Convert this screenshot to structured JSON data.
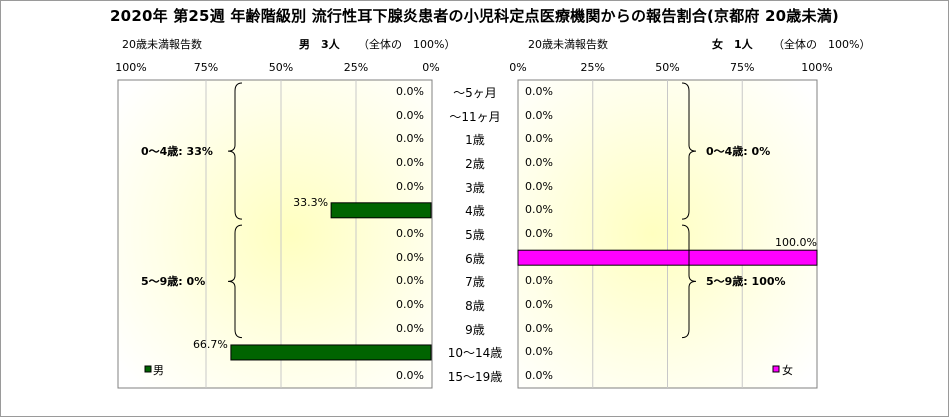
{
  "title": "2020年 第25週 年齢階級別 流行性耳下腺炎患者の小児科定点医療機関からの報告割合(京都府 20歳未満)",
  "left": {
    "subtitle_left": "20歳未満報告数",
    "subtitle_main": "男　3人",
    "subtitle_total": "（全体の　100%）",
    "ticks": [
      "100%",
      "75%",
      "50%",
      "25%",
      "0%"
    ],
    "legend": "男",
    "color": "#006400",
    "groups": [
      {
        "label": "0～4歳: 33%",
        "from": 0,
        "to": 5
      },
      {
        "label": "5～9歳: 0%",
        "from": 6,
        "to": 10
      }
    ]
  },
  "right": {
    "subtitle_left": "20歳未満報告数",
    "subtitle_main": "女　1人",
    "subtitle_total": "（全体の　100%）",
    "ticks": [
      "0%",
      "25%",
      "50%",
      "75%",
      "100%"
    ],
    "legend": "女",
    "color": "#ff00ff",
    "groups": [
      {
        "label": "0～4歳: 0%",
        "from": 0,
        "to": 5
      },
      {
        "label": "5～9歳: 100%",
        "from": 6,
        "to": 10
      }
    ]
  },
  "chart_data": {
    "type": "bar",
    "orientation": "horizontal",
    "categories": [
      "～5ヶ月",
      "～11ヶ月",
      "1歳",
      "2歳",
      "3歳",
      "4歳",
      "5歳",
      "6歳",
      "7歳",
      "8歳",
      "9歳",
      "10～14歳",
      "15～19歳"
    ],
    "series": [
      {
        "name": "男",
        "values": [
          0.0,
          0.0,
          0.0,
          0.0,
          0.0,
          33.3,
          0.0,
          0.0,
          0.0,
          0.0,
          0.0,
          66.7,
          0.0
        ]
      },
      {
        "name": "女",
        "values": [
          0.0,
          0.0,
          0.0,
          0.0,
          0.0,
          0.0,
          0.0,
          100.0,
          0.0,
          0.0,
          0.0,
          0.0,
          0.0
        ]
      }
    ],
    "value_labels": {
      "男": [
        "0.0%",
        "0.0%",
        "0.0%",
        "0.0%",
        "0.0%",
        "33.3%",
        "0.0%",
        "0.0%",
        "0.0%",
        "0.0%",
        "0.0%",
        "66.7%",
        "0.0%"
      ],
      "女": [
        "0.0%",
        "0.0%",
        "0.0%",
        "0.0%",
        "0.0%",
        "0.0%",
        "0.0%",
        "100.0%",
        "0.0%",
        "0.0%",
        "0.0%",
        "0.0%",
        "0.0%"
      ]
    },
    "xlim": [
      0,
      100
    ],
    "grid": true,
    "legend_position": "bottom"
  }
}
